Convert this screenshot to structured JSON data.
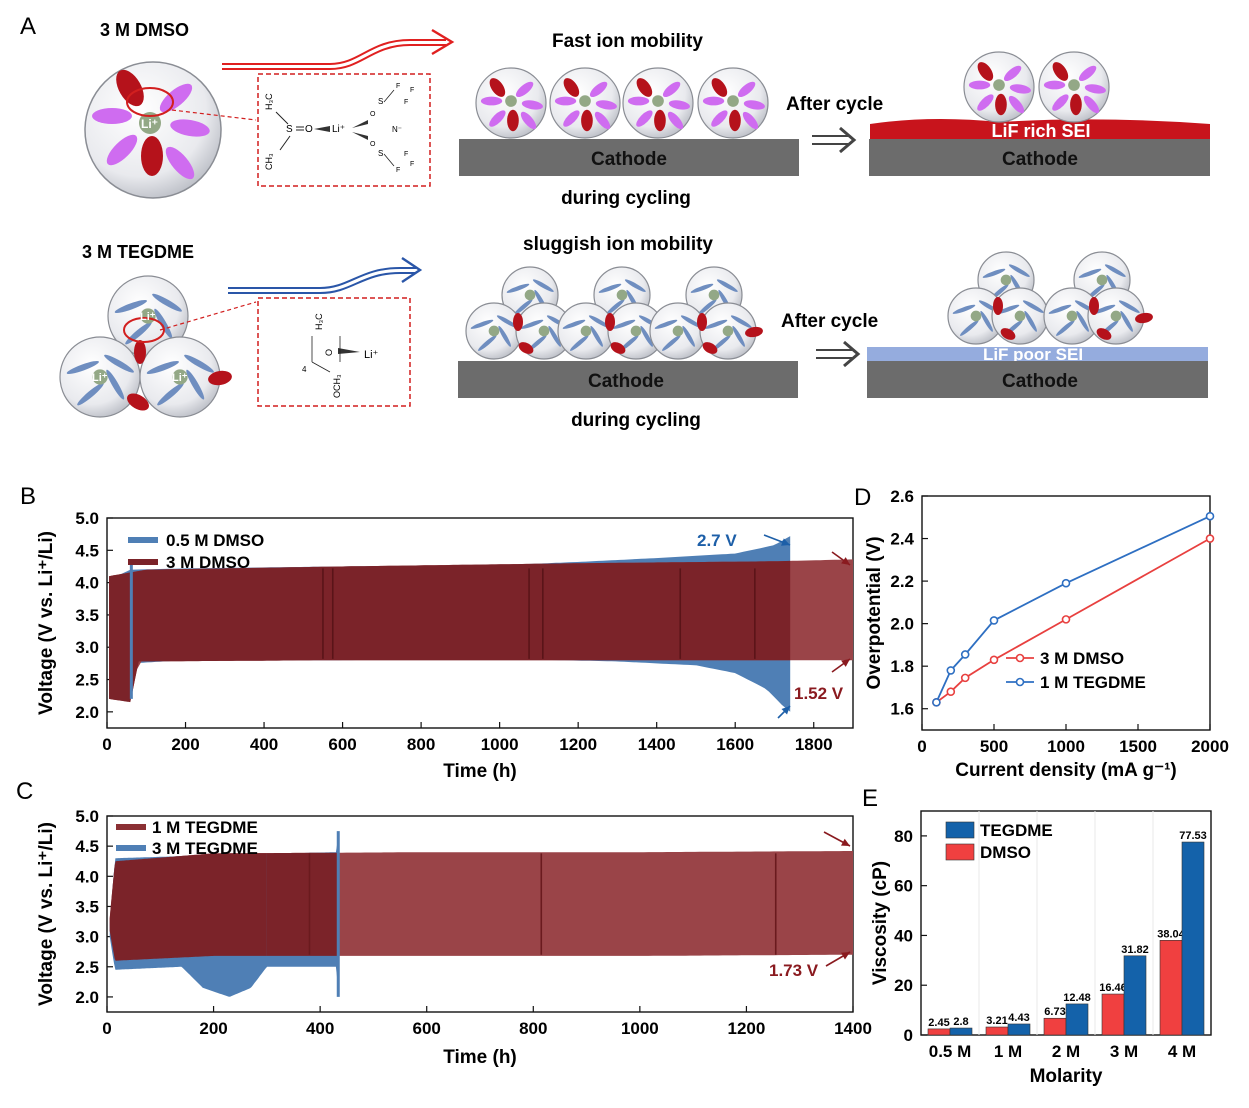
{
  "panel_letters": [
    "A",
    "B",
    "C",
    "D",
    "E"
  ],
  "schematic": {
    "dmso_label": "3 M DMSO",
    "tegdme_label": "3 M TEGDME",
    "li_ion": "Li⁺",
    "fast_title": "Fast ion mobility",
    "sluggish_title": "sluggish ion mobility",
    "cathode": "Cathode",
    "during_cycling": "during cycling",
    "after_cycle": "After cycle",
    "lif_rich": "LiF rich SEI",
    "lif_poor": "LiF poor SEI",
    "mol_dmso": {
      "h3c": "H₃C",
      "ch3": "CH₃",
      "s": "S",
      "o": "O",
      "li": "Li⁺",
      "n": "N⁻",
      "f": "F"
    },
    "mol_tegdme": {
      "h3c": "H₃C",
      "o": "O",
      "och3": "OCH₃",
      "sub4": "4",
      "li": "Li⁺"
    }
  },
  "chart_data": [
    {
      "id": "B",
      "type": "area",
      "xlabel": "Time (h)",
      "ylabel": "Voltage (V vs. Li⁺/Li)",
      "xlim": [
        0,
        1900
      ],
      "ylim": [
        1.75,
        5.0
      ],
      "xticks": [
        0,
        200,
        400,
        600,
        800,
        1000,
        1200,
        1400,
        1600,
        1800
      ],
      "yticks": [
        2.0,
        2.5,
        3.0,
        3.5,
        4.0,
        4.5,
        5.0
      ],
      "series": [
        {
          "name": "0.5 M DMSO",
          "color": "#4f7fb5",
          "end_time": 1740,
          "upper": [
            [
              5,
              4.05
            ],
            [
              60,
              4.2
            ],
            [
              200,
              4.22
            ],
            [
              600,
              4.25
            ],
            [
              1000,
              4.27
            ],
            [
              1200,
              4.32
            ],
            [
              1400,
              4.38
            ],
            [
              1600,
              4.45
            ],
            [
              1700,
              4.58
            ],
            [
              1740,
              4.72
            ]
          ],
          "lower": [
            [
              5,
              2.2
            ],
            [
              60,
              2.75
            ],
            [
              200,
              2.8
            ],
            [
              600,
              2.8
            ],
            [
              1000,
              2.82
            ],
            [
              1300,
              2.78
            ],
            [
              1500,
              2.72
            ],
            [
              1600,
              2.6
            ],
            [
              1680,
              2.35
            ],
            [
              1720,
              2.1
            ],
            [
              1740,
              2.0
            ]
          ]
        },
        {
          "name": "3 M DMSO",
          "color": "#7b2329",
          "end_time": 1900,
          "upper": [
            [
              5,
              4.1
            ],
            [
              100,
              4.2
            ],
            [
              600,
              4.25
            ],
            [
              1200,
              4.3
            ],
            [
              1700,
              4.33
            ],
            [
              1900,
              4.36
            ]
          ],
          "lower": [
            [
              5,
              2.2
            ],
            [
              60,
              2.15
            ],
            [
              80,
              2.78
            ],
            [
              600,
              2.8
            ],
            [
              1200,
              2.8
            ],
            [
              1900,
              2.8
            ]
          ]
        }
      ],
      "annotations": [
        "2.7 V",
        "1.52 V"
      ]
    },
    {
      "id": "C",
      "type": "area",
      "xlabel": "Time (h)",
      "ylabel": "Voltage (V vs. Li⁺/Li)",
      "xlim": [
        0,
        1400
      ],
      "ylim": [
        1.75,
        5.0
      ],
      "xticks": [
        0,
        200,
        400,
        600,
        800,
        1000,
        1200,
        1400
      ],
      "yticks": [
        2.0,
        2.5,
        3.0,
        3.5,
        4.0,
        4.5,
        5.0
      ],
      "series": [
        {
          "name": "1 M TEGDME",
          "color": "#8b3034",
          "end_time": 1400,
          "upper": [
            [
              5,
              3.3
            ],
            [
              15,
              4.25
            ],
            [
              200,
              4.38
            ],
            [
              600,
              4.4
            ],
            [
              1000,
              4.4
            ],
            [
              1400,
              4.42
            ]
          ],
          "lower": [
            [
              5,
              3.1
            ],
            [
              15,
              2.6
            ],
            [
              200,
              2.68
            ],
            [
              600,
              2.68
            ],
            [
              1000,
              2.68
            ],
            [
              1400,
              2.7
            ]
          ]
        },
        {
          "name": "3 M TEGDME",
          "color": "#4f7fb5",
          "end_time": 435,
          "upper": [
            [
              5,
              3.2
            ],
            [
              15,
              4.3
            ],
            [
              200,
              4.35
            ],
            [
              430,
              4.4
            ],
            [
              435,
              4.75
            ]
          ],
          "lower": [
            [
              5,
              3.0
            ],
            [
              15,
              2.45
            ],
            [
              140,
              2.5
            ],
            [
              180,
              2.15
            ],
            [
              230,
              2.0
            ],
            [
              270,
              2.15
            ],
            [
              300,
              2.5
            ],
            [
              430,
              2.5
            ],
            [
              435,
              2.0
            ]
          ]
        }
      ],
      "annotations": [
        "1.73 V"
      ]
    },
    {
      "id": "D",
      "type": "line",
      "xlabel": "Current density (mA g⁻¹)",
      "ylabel": "Overpotential (V)",
      "xlim": [
        0,
        2000
      ],
      "ylim": [
        1.5,
        2.6
      ],
      "xticks": [
        0,
        500,
        1000,
        1500,
        2000
      ],
      "yticks": [
        1.6,
        1.8,
        2.0,
        2.2,
        2.4,
        2.6
      ],
      "x": [
        100,
        200,
        300,
        500,
        1000,
        2000
      ],
      "series": [
        {
          "name": "3 M DMSO",
          "color": "#e8403f",
          "values": [
            1.63,
            1.68,
            1.745,
            1.83,
            2.02,
            2.4
          ]
        },
        {
          "name": "1 M TEGDME",
          "color": "#2e6fc2",
          "values": [
            1.63,
            1.78,
            1.855,
            2.015,
            2.19,
            2.505
          ]
        }
      ]
    },
    {
      "id": "E",
      "type": "bar",
      "xlabel": "Molarity",
      "ylabel": "Viscosity (cP)",
      "ylim": [
        0,
        90
      ],
      "yticks": [
        0,
        20,
        40,
        60,
        80
      ],
      "categories": [
        "0.5 M",
        "1 M",
        "2 M",
        "3 M",
        "4 M"
      ],
      "series": [
        {
          "name": "DMSO",
          "color": "#f04040",
          "values": [
            2.45,
            3.21,
            6.73,
            16.46,
            38.04
          ]
        },
        {
          "name": "TEGDME",
          "color": "#1462aa",
          "values": [
            2.8,
            4.43,
            12.48,
            31.82,
            77.53
          ]
        }
      ]
    }
  ]
}
